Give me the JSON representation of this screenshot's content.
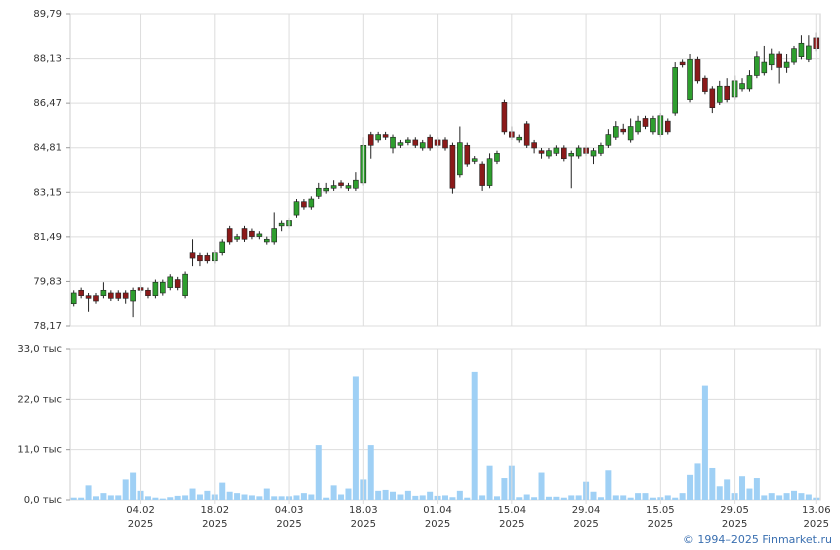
{
  "chart_data": [
    {
      "type": "candlestick",
      "open": [
        79.0,
        79.5,
        79.3,
        79.3,
        79.3,
        79.4,
        79.4,
        79.4,
        79.1,
        79.6,
        79.5,
        79.3,
        79.4,
        79.6,
        79.9,
        79.3,
        80.9,
        80.8,
        80.8,
        80.6,
        80.9,
        81.8,
        81.4,
        81.8,
        81.7,
        81.5,
        81.3,
        81.3,
        81.9,
        81.9,
        82.3,
        82.8,
        82.6,
        83.0,
        83.2,
        83.3,
        83.5,
        83.3,
        83.3,
        83.5,
        85.3,
        85.1,
        85.3,
        84.8,
        84.9,
        85.0,
        85.1,
        84.8,
        85.2,
        85.1,
        85.1,
        84.9,
        83.8,
        84.9,
        84.3,
        84.2,
        83.4,
        84.3,
        86.5,
        85.4,
        85.1,
        85.7,
        85.0,
        84.7,
        84.5,
        84.6,
        84.8,
        84.5,
        84.5,
        84.8,
        84.5,
        84.6,
        84.9,
        85.2,
        85.5,
        85.1,
        85.4,
        85.9,
        85.4,
        85.3,
        85.8,
        86.1,
        88.0,
        86.6,
        88.1,
        87.4,
        87.0,
        86.5,
        87.1,
        86.7,
        87.0,
        87.0,
        87.5,
        87.6,
        87.9,
        88.3,
        87.8,
        88.0,
        88.2,
        88.1,
        88.9
      ],
      "high": [
        79.5,
        79.6,
        79.4,
        79.4,
        79.8,
        79.5,
        79.5,
        79.5,
        79.6,
        79.7,
        79.6,
        79.9,
        79.9,
        80.1,
        80.0,
        80.2,
        81.4,
        80.9,
        80.9,
        81.0,
        81.4,
        81.9,
        81.6,
        81.9,
        81.8,
        81.7,
        81.5,
        82.4,
        82.1,
        82.2,
        82.9,
        82.9,
        83.0,
        83.5,
        83.5,
        83.6,
        83.6,
        83.5,
        83.9,
        85.2,
        85.4,
        85.4,
        85.4,
        85.3,
        85.1,
        85.2,
        85.2,
        85.1,
        85.3,
        85.2,
        85.2,
        85.0,
        85.6,
        85.0,
        84.5,
        84.3,
        84.6,
        84.7,
        86.6,
        85.6,
        85.3,
        85.8,
        85.1,
        84.8,
        84.8,
        84.9,
        84.9,
        84.7,
        84.9,
        84.9,
        84.8,
        85.0,
        85.5,
        85.8,
        85.7,
        85.9,
        86.0,
        86.0,
        86.0,
        86.1,
        85.9,
        88.0,
        88.1,
        88.3,
        88.2,
        87.5,
        87.1,
        87.3,
        87.4,
        87.5,
        87.4,
        87.7,
        88.4,
        88.6,
        88.5,
        88.4,
        88.3,
        88.6,
        89.0,
        89.0,
        89.1
      ],
      "low": [
        78.9,
        79.2,
        78.7,
        79.0,
        79.2,
        79.1,
        79.1,
        79.0,
        78.5,
        79.4,
        79.2,
        79.2,
        79.3,
        79.5,
        79.5,
        79.2,
        80.4,
        80.4,
        80.5,
        80.5,
        80.8,
        81.2,
        81.3,
        81.3,
        81.4,
        81.4,
        81.2,
        81.2,
        81.7,
        81.8,
        82.2,
        82.5,
        82.5,
        82.9,
        83.1,
        83.2,
        83.3,
        83.2,
        83.2,
        83.4,
        84.4,
        85.0,
        85.1,
        84.6,
        84.8,
        84.9,
        84.8,
        84.7,
        84.7,
        84.8,
        84.7,
        83.1,
        83.7,
        84.1,
        84.2,
        83.2,
        83.3,
        84.2,
        85.3,
        85.1,
        85.0,
        84.8,
        84.6,
        84.4,
        84.4,
        84.5,
        84.3,
        83.3,
        84.4,
        84.5,
        84.2,
        84.5,
        84.8,
        85.1,
        85.3,
        85.0,
        85.3,
        85.5,
        85.3,
        85.2,
        85.3,
        86.0,
        87.8,
        86.5,
        87.2,
        86.8,
        86.1,
        86.4,
        86.5,
        86.6,
        86.9,
        86.9,
        87.4,
        87.5,
        87.7,
        87.2,
        87.6,
        87.9,
        88.1,
        88.0,
        88.4
      ],
      "close": [
        79.4,
        79.3,
        79.2,
        79.1,
        79.5,
        79.2,
        79.2,
        79.2,
        79.5,
        79.5,
        79.3,
        79.8,
        79.8,
        80.0,
        79.6,
        80.1,
        80.7,
        80.6,
        80.6,
        80.9,
        81.3,
        81.3,
        81.5,
        81.4,
        81.5,
        81.6,
        81.4,
        81.8,
        82.0,
        82.1,
        82.8,
        82.6,
        82.9,
        83.3,
        83.3,
        83.4,
        83.4,
        83.4,
        83.6,
        84.9,
        84.9,
        85.3,
        85.2,
        85.2,
        85.0,
        85.1,
        84.9,
        85.0,
        84.8,
        84.9,
        84.8,
        83.3,
        85.0,
        84.2,
        84.4,
        83.4,
        84.4,
        84.6,
        85.4,
        85.2,
        85.2,
        84.9,
        84.8,
        84.6,
        84.7,
        84.8,
        84.4,
        84.6,
        84.8,
        84.6,
        84.7,
        84.9,
        85.3,
        85.6,
        85.4,
        85.6,
        85.8,
        85.6,
        85.9,
        86.0,
        85.4,
        87.8,
        87.9,
        88.1,
        87.3,
        86.9,
        86.3,
        87.1,
        86.6,
        87.3,
        87.2,
        87.5,
        88.2,
        88.0,
        88.3,
        87.8,
        88.0,
        88.5,
        88.7,
        88.6,
        88.5
      ],
      "up_color": "#2e9e2e",
      "down_color": "#8b1a1a",
      "ylim": [
        78.17,
        89.79
      ],
      "yticks": [
        {
          "value": 78.17,
          "label": "78,17"
        },
        {
          "value": 79.83,
          "label": "79,83"
        },
        {
          "value": 81.49,
          "label": "81,49"
        },
        {
          "value": 83.15,
          "label": "83,15"
        },
        {
          "value": 84.81,
          "label": "84,81"
        },
        {
          "value": 86.47,
          "label": "86,47"
        },
        {
          "value": 88.13,
          "label": "88,13"
        },
        {
          "value": 89.79,
          "label": "89,79"
        }
      ],
      "grid": true
    },
    {
      "type": "bar",
      "categories": [
        null,
        null,
        null,
        null,
        null,
        null,
        null,
        null,
        null,
        "04.02\n2025",
        null,
        null,
        null,
        null,
        null,
        null,
        null,
        null,
        null,
        "18.02\n2025",
        null,
        null,
        null,
        null,
        null,
        null,
        null,
        null,
        null,
        "04.03\n2025",
        null,
        null,
        null,
        null,
        null,
        null,
        null,
        null,
        null,
        "18.03\n2025",
        null,
        null,
        null,
        null,
        null,
        null,
        null,
        null,
        null,
        "01.04\n2025",
        null,
        null,
        null,
        null,
        null,
        null,
        null,
        null,
        null,
        "15.04\n2025",
        null,
        null,
        null,
        null,
        null,
        null,
        null,
        null,
        null,
        "29.04\n2025",
        null,
        null,
        null,
        null,
        null,
        null,
        null,
        null,
        null,
        "15.05\n2025",
        null,
        null,
        null,
        null,
        null,
        null,
        null,
        null,
        null,
        "29.05\n2025",
        null,
        null,
        null,
        null,
        null,
        null,
        null,
        null,
        null,
        null,
        "13.06\n2025"
      ],
      "values": [
        0.5,
        0.5,
        3.2,
        0.8,
        1.5,
        1,
        1,
        4.5,
        6,
        2,
        0.8,
        0.5,
        0.3,
        0.6,
        0.9,
        1,
        2.5,
        1.2,
        2,
        1.2,
        3.8,
        1.8,
        1.5,
        1.2,
        1,
        0.8,
        2.5,
        0.8,
        0.8,
        0.8,
        1,
        1.5,
        1.2,
        12,
        0.5,
        3.2,
        1.2,
        2.5,
        27,
        4.5,
        12,
        2,
        2.2,
        1.8,
        1.2,
        2,
        0.9,
        1,
        1.8,
        0.9,
        1,
        0.6,
        2,
        0.5,
        28,
        1,
        7.5,
        0.8,
        4.8,
        7.5,
        0.6,
        1.2,
        0.6,
        6,
        0.7,
        0.7,
        0.5,
        1,
        1,
        4,
        1.8,
        0.6,
        6.5,
        1,
        1,
        0.5,
        1.5,
        1.5,
        0.5,
        0.6,
        1,
        0.5,
        1.5,
        5.5,
        8,
        25,
        7,
        3,
        4.5,
        1.5,
        5.2,
        2.5,
        4.8,
        1,
        1.5,
        1,
        1.5,
        2,
        1.5,
        1.2,
        0.5
      ],
      "color": "#9fd0f5",
      "ylim": [
        0,
        33
      ],
      "yticks": [
        {
          "value": 0,
          "label": "0,0 тыс"
        },
        {
          "value": 11,
          "label": "11,0 тыс"
        },
        {
          "value": 22,
          "label": "22,0 тыс"
        },
        {
          "value": 33,
          "label": "33,0 тыс"
        }
      ],
      "grid": true
    }
  ],
  "copyright": "© 1994–2025 Finmarket.ru"
}
